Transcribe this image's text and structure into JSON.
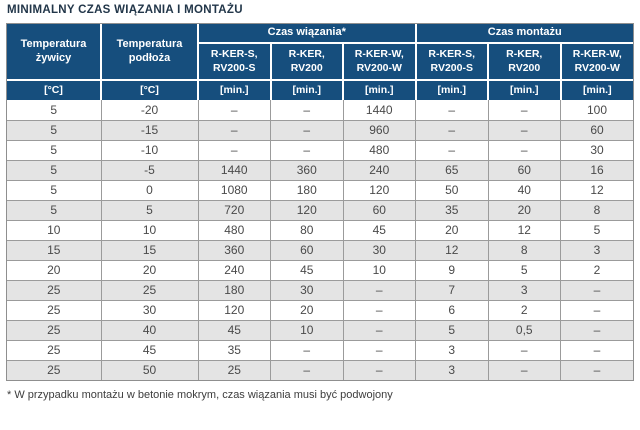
{
  "title": "MINIMALNY CZAS WIĄZANIA I MONTAŻU",
  "table": {
    "header": {
      "temp_resin": "Temperatura\nżywicy",
      "temp_substrate": "Temperatura\npodłoża",
      "group_binding": "Czas wiązania*",
      "group_installation": "Czas montażu",
      "products": [
        "R-KER-S,\nRV200-S",
        "R-KER,\nRV200",
        "R-KER-W,\nRV200-W"
      ],
      "unit_celsius": "[°C]",
      "unit_minutes": "[min.]"
    },
    "rows": [
      [
        "5",
        "-20",
        "–",
        "–",
        "1440",
        "–",
        "–",
        "100"
      ],
      [
        "5",
        "-15",
        "–",
        "–",
        "960",
        "–",
        "–",
        "60"
      ],
      [
        "5",
        "-10",
        "–",
        "–",
        "480",
        "–",
        "–",
        "30"
      ],
      [
        "5",
        "-5",
        "1440",
        "360",
        "240",
        "65",
        "60",
        "16"
      ],
      [
        "5",
        "0",
        "1080",
        "180",
        "120",
        "50",
        "40",
        "12"
      ],
      [
        "5",
        "5",
        "720",
        "120",
        "60",
        "35",
        "20",
        "8"
      ],
      [
        "10",
        "10",
        "480",
        "80",
        "45",
        "20",
        "12",
        "5"
      ],
      [
        "15",
        "15",
        "360",
        "60",
        "30",
        "12",
        "8",
        "3"
      ],
      [
        "20",
        "20",
        "240",
        "45",
        "10",
        "9",
        "5",
        "2"
      ],
      [
        "25",
        "25",
        "180",
        "30",
        "–",
        "7",
        "3",
        "–"
      ],
      [
        "25",
        "30",
        "120",
        "20",
        "–",
        "6",
        "2",
        "–"
      ],
      [
        "25",
        "40",
        "45",
        "10",
        "–",
        "5",
        "0,5",
        "–"
      ],
      [
        "25",
        "45",
        "35",
        "–",
        "–",
        "3",
        "–",
        "–"
      ],
      [
        "25",
        "50",
        "25",
        "–",
        "–",
        "3",
        "–",
        "–"
      ]
    ]
  },
  "footnote": "* W przypadku montażu w betonie mokrym, czas wiązania musi być podwojony",
  "colors": {
    "header_bg": "#164e7d",
    "stripe": "#e4e4e4",
    "border": "#9b9b9b",
    "title_text": "#223649",
    "cell_text": "#4a4a4a"
  }
}
